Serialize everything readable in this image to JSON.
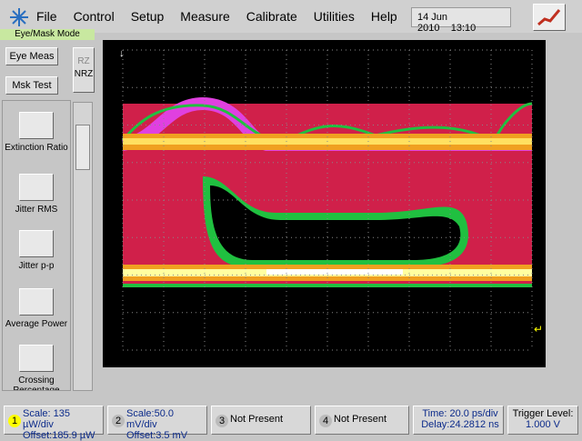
{
  "menu": [
    "File",
    "Control",
    "Setup",
    "Measure",
    "Calibrate",
    "Utilities",
    "Help"
  ],
  "date": "14 Jun 2010",
  "time": "13:10",
  "mode": "Eye/Mask Mode",
  "buttons": {
    "eye_meas": "Eye Meas",
    "msk_test": "Msk Test",
    "rz": "RZ",
    "nrz": "NRZ"
  },
  "measurements": [
    "Extinction Ratio",
    "Jitter RMS",
    "Jitter p-p",
    "Average Power",
    "Crossing Percentage"
  ],
  "channels": [
    {
      "number": "1",
      "scale": "Scale: 135 µW/div",
      "offset": "Offset:185.9 µW"
    },
    {
      "number": "2",
      "scale": "Scale:50.0 mV/div",
      "offset": "Offset:3.5 mV"
    },
    {
      "number": "3",
      "status": "Not Present"
    },
    {
      "number": "4",
      "status": "Not Present"
    }
  ],
  "timebase": {
    "time": "Time: 20.0 ps/div",
    "delay": "Delay:24.2812 ns"
  },
  "trigger": {
    "label": "Trigger Level:",
    "level": "1.000 V"
  }
}
